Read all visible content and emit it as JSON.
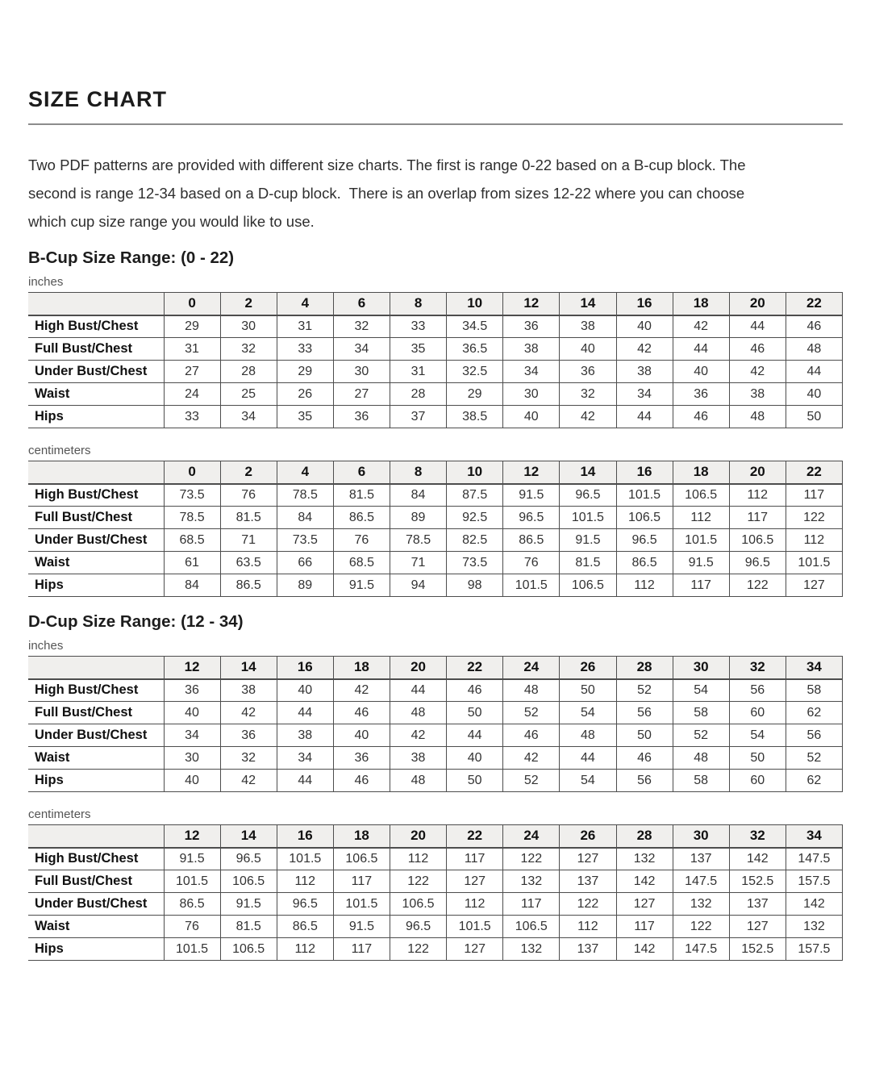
{
  "page": {
    "title": "SIZE CHART",
    "intro_lines": [
      "Two PDF patterns are provided with different size charts. The first is range 0-22 based on a B-cup block. The",
      "second is range 12-34 based on a D-cup block.  There is an overlap from sizes 12-22 where you can choose",
      "which cup size range you would like to use."
    ]
  },
  "row_labels": [
    "High Bust/Chest",
    "Full Bust/Chest",
    "Under Bust/Chest",
    "Waist",
    "Hips"
  ],
  "sections": [
    {
      "heading": "B-Cup Size Range: (0 - 22)",
      "tables": [
        {
          "unit_label": "inches",
          "sizes": [
            0,
            2,
            4,
            6,
            8,
            10,
            12,
            14,
            16,
            18,
            20,
            22
          ],
          "rows": [
            [
              29,
              30,
              31,
              32,
              33,
              34.5,
              36,
              38,
              40,
              42,
              44,
              46
            ],
            [
              31,
              32,
              33,
              34,
              35,
              36.5,
              38,
              40,
              42,
              44,
              46,
              48
            ],
            [
              27,
              28,
              29,
              30,
              31,
              32.5,
              34,
              36,
              38,
              40,
              42,
              44
            ],
            [
              24,
              25,
              26,
              27,
              28,
              29,
              30,
              32,
              34,
              36,
              38,
              40
            ],
            [
              33,
              34,
              35,
              36,
              37,
              38.5,
              40,
              42,
              44,
              46,
              48,
              50
            ]
          ]
        },
        {
          "unit_label": "centimeters",
          "sizes": [
            0,
            2,
            4,
            6,
            8,
            10,
            12,
            14,
            16,
            18,
            20,
            22
          ],
          "rows": [
            [
              73.5,
              76,
              78.5,
              81.5,
              84,
              87.5,
              91.5,
              96.5,
              101.5,
              106.5,
              112,
              117
            ],
            [
              78.5,
              81.5,
              84,
              86.5,
              89,
              92.5,
              96.5,
              101.5,
              106.5,
              112,
              117,
              122
            ],
            [
              68.5,
              71,
              73.5,
              76,
              78.5,
              82.5,
              86.5,
              91.5,
              96.5,
              101.5,
              106.5,
              112
            ],
            [
              61,
              63.5,
              66,
              68.5,
              71,
              73.5,
              76,
              81.5,
              86.5,
              91.5,
              96.5,
              101.5
            ],
            [
              84,
              86.5,
              89,
              91.5,
              94,
              98,
              101.5,
              106.5,
              112,
              117,
              122,
              127
            ]
          ]
        }
      ]
    },
    {
      "heading": "D-Cup Size Range: (12 - 34)",
      "tables": [
        {
          "unit_label": "inches",
          "sizes": [
            12,
            14,
            16,
            18,
            20,
            22,
            24,
            26,
            28,
            30,
            32,
            34
          ],
          "rows": [
            [
              36,
              38,
              40,
              42,
              44,
              46,
              48,
              50,
              52,
              54,
              56,
              58
            ],
            [
              40,
              42,
              44,
              46,
              48,
              50,
              52,
              54,
              56,
              58,
              60,
              62
            ],
            [
              34,
              36,
              38,
              40,
              42,
              44,
              46,
              48,
              50,
              52,
              54,
              56
            ],
            [
              30,
              32,
              34,
              36,
              38,
              40,
              42,
              44,
              46,
              48,
              50,
              52
            ],
            [
              40,
              42,
              44,
              46,
              48,
              50,
              52,
              54,
              56,
              58,
              60,
              62
            ]
          ]
        },
        {
          "unit_label": "centimeters",
          "sizes": [
            12,
            14,
            16,
            18,
            20,
            22,
            24,
            26,
            28,
            30,
            32,
            34
          ],
          "rows": [
            [
              91.5,
              96.5,
              101.5,
              106.5,
              112,
              117,
              122,
              127,
              132,
              137,
              142,
              147.5
            ],
            [
              101.5,
              106.5,
              112,
              117,
              122,
              127,
              132,
              137,
              142,
              147.5,
              152.5,
              157.5
            ],
            [
              86.5,
              91.5,
              96.5,
              101.5,
              106.5,
              112,
              117,
              122,
              127,
              132,
              137,
              142
            ],
            [
              76,
              81.5,
              86.5,
              91.5,
              96.5,
              101.5,
              106.5,
              112,
              117,
              122,
              127,
              132
            ],
            [
              101.5,
              106.5,
              112,
              117,
              122,
              127,
              132,
              137,
              142,
              147.5,
              152.5,
              157.5
            ]
          ]
        }
      ]
    }
  ],
  "colors": {
    "heading": "#1c1c1c",
    "text": "#333333",
    "unit_label": "#555555",
    "divider": "#8c8c8c",
    "table_border": "#4d4d4d",
    "header_bg": "#f0efed"
  }
}
